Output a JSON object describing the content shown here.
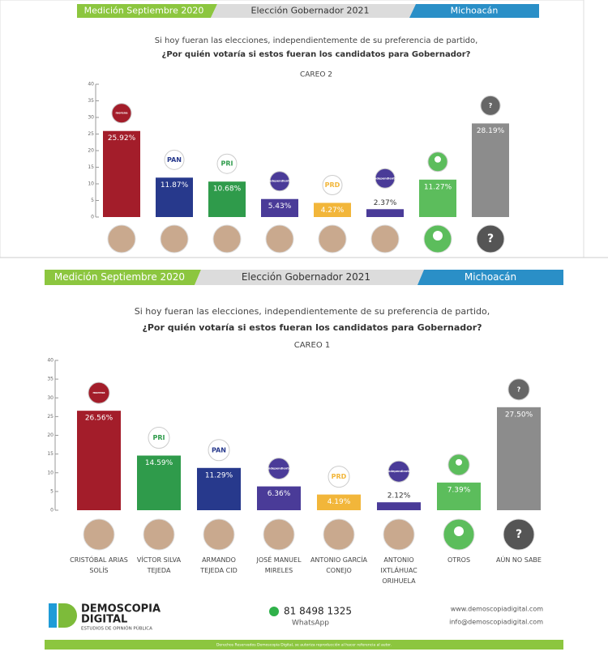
{
  "chart_data": [
    {
      "type": "bar",
      "banner": [
        "Medición Septiembre 2020",
        "Elección Gobernador 2021",
        "Michoacán"
      ],
      "title": "Si hoy fueran las elecciones, independientemente de su preferencia de partido,",
      "subtitle": "¿Por quién votaría si estos fueran los candidatos para Gobernador?",
      "careo": "CAREO 2",
      "categories": [
        null,
        null,
        null,
        null,
        null,
        null,
        null,
        null
      ],
      "logos": [
        "morena",
        "PAN",
        "PRI",
        "independiente",
        "PRD",
        "independiente",
        null,
        "?"
      ],
      "photo_labels": [
        null,
        null,
        null,
        null,
        null,
        null,
        null,
        "?"
      ],
      "values": [
        25.92,
        11.87,
        10.68,
        5.43,
        4.27,
        2.37,
        11.27,
        28.19
      ],
      "value_labels": [
        "25.92%",
        "11.87%",
        "10.68%",
        "5.43%",
        "4.27%",
        "2.37%",
        "11.27%",
        "28.19%"
      ],
      "colors": [
        "#a31d2a",
        "#27398c",
        "#2f9b4b",
        "#4a3b98",
        "#f2b63a",
        "#4a3b98",
        "#5cbd5c",
        "#8c8c8c"
      ],
      "ylim": [
        0,
        40
      ],
      "yticks": [
        0,
        5,
        10,
        15,
        20,
        25,
        30,
        35,
        40
      ]
    },
    {
      "type": "bar",
      "banner": [
        "Medición Septiembre 2020",
        "Elección Gobernador 2021",
        "Michoacán"
      ],
      "title": "Si hoy fueran las elecciones, independientemente de su preferencia de partido,",
      "subtitle": "¿Por quién votaría si estos fueran los candidatos para Gobernador?",
      "careo": "CAREO 1",
      "categories": [
        "CRISTÓBAL ARIAS SOLÍS",
        "VÍCTOR SILVA TEJEDA",
        "ARMANDO TEJEDA CID",
        "JOSÉ MANUEL MIRELES",
        "ANTONIO GARCÍA CONEJO",
        "ANTONIO IXTLÁHUAC ORIHUELA",
        "OTROS",
        "AÚN NO SABE"
      ],
      "logos": [
        "morena",
        "PRI",
        "PAN",
        "independiente",
        "PRD",
        "independiente",
        null,
        "?"
      ],
      "photo_labels": [
        null,
        null,
        null,
        null,
        null,
        null,
        null,
        "?"
      ],
      "values": [
        26.56,
        14.59,
        11.29,
        6.36,
        4.19,
        2.12,
        7.39,
        27.5
      ],
      "value_labels": [
        "26.56%",
        "14.59%",
        "11.29%",
        "6.36%",
        "4.19%",
        "2.12%",
        "7.39%",
        "27.50%"
      ],
      "colors": [
        "#a31d2a",
        "#2f9b4b",
        "#27398c",
        "#4a3b98",
        "#f2b63a",
        "#4a3b98",
        "#5cbd5c",
        "#8c8c8c"
      ],
      "ylim": [
        0,
        40
      ],
      "yticks": [
        0,
        5,
        10,
        15,
        20,
        25,
        30,
        35,
        40
      ]
    }
  ],
  "footer": {
    "brand": "DEMOSCOPIA",
    "brand2": "DIGITAL",
    "tagline": "ESTUDIOS DE OPINIÓN PÚBLICA",
    "phone": "81 8498 1325",
    "phone_label": "WhatsApp",
    "web": "www.demoscopiadigital.com",
    "email": "info@demoscopiadigital.com",
    "rights": "Derechos Reservados Demoscopia Digital, se autoriza reproducción al hacer referencia al autor."
  }
}
